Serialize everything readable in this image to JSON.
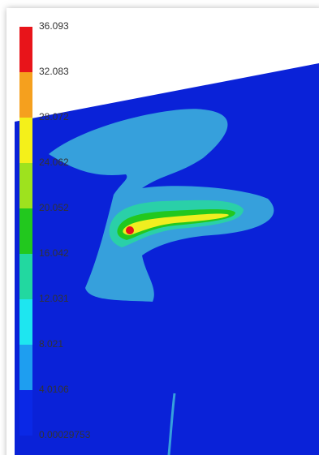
{
  "legend": {
    "labels": [
      "36.093",
      "32.083",
      "28.072",
      "24.062",
      "20.052",
      "16.042",
      "12.031",
      "8.021",
      "4.0106",
      "0.00029753"
    ],
    "colors": [
      "#e8141a",
      "#f5a01e",
      "#f4f01a",
      "#9ee21e",
      "#22c81e",
      "#22d8a0",
      "#1ee6f0",
      "#1e9ef0",
      "#0a28e6"
    ]
  }
}
